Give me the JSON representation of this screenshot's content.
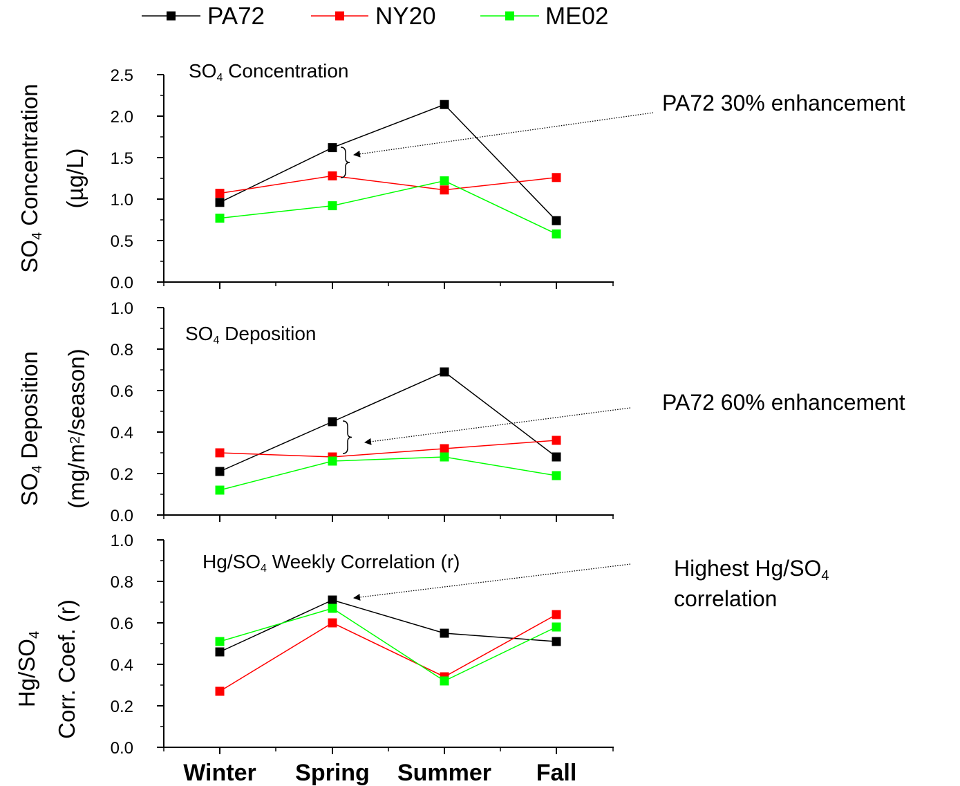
{
  "legend": [
    {
      "name": "PA72",
      "color": "#000000"
    },
    {
      "name": "NY20",
      "color": "#ff0000"
    },
    {
      "name": "ME02",
      "color": "#00ff00"
    }
  ],
  "chart_data": [
    {
      "type": "line",
      "title_main": "SO",
      "title_sub": "4",
      "title_rest": " Concentration",
      "ylabel_line1_main": "SO",
      "ylabel_line1_sub": "4",
      "ylabel_line1_rest": " Concentration",
      "ylabel_line2": "(µg/L)",
      "categories": [
        "Winter",
        "Spring",
        "Summer",
        "Fall"
      ],
      "ylim": [
        0,
        2.5
      ],
      "yticks": [
        "0.0",
        "0.5",
        "1.0",
        "1.5",
        "2.0",
        "2.5"
      ],
      "series": [
        {
          "name": "PA72",
          "color": "#000000",
          "values": [
            0.96,
            1.62,
            2.14,
            0.74
          ]
        },
        {
          "name": "NY20",
          "color": "#ff0000",
          "values": [
            1.07,
            1.28,
            1.11,
            1.26
          ]
        },
        {
          "name": "ME02",
          "color": "#00ff00",
          "values": [
            0.77,
            0.92,
            1.22,
            0.58
          ]
        }
      ]
    },
    {
      "type": "line",
      "title_main": "SO",
      "title_sub": "4",
      "title_rest": "  Deposition",
      "ylabel_line1_main": "SO",
      "ylabel_line1_sub": "4",
      "ylabel_line1_rest": " Deposition",
      "ylabel_line2_pre": "(mg/m",
      "ylabel_line2_sup": "2",
      "ylabel_line2_post": "/season)",
      "categories": [
        "Winter",
        "Spring",
        "Summer",
        "Fall"
      ],
      "ylim": [
        0,
        1.0
      ],
      "yticks": [
        "0.0",
        "0.2",
        "0.4",
        "0.6",
        "0.8",
        "1.0"
      ],
      "series": [
        {
          "name": "PA72",
          "color": "#000000",
          "values": [
            0.21,
            0.45,
            0.69,
            0.28
          ]
        },
        {
          "name": "NY20",
          "color": "#ff0000",
          "values": [
            0.3,
            0.28,
            0.32,
            0.36
          ]
        },
        {
          "name": "ME02",
          "color": "#00ff00",
          "values": [
            0.12,
            0.26,
            0.28,
            0.19
          ]
        }
      ]
    },
    {
      "type": "line",
      "title_main": "Hg/SO",
      "title_sub": "4",
      "title_rest": " Weekly Correlation (r)",
      "ylabel_line1_main": "Hg/SO",
      "ylabel_line1_sub": "4",
      "ylabel_line2": "Corr. Coef. (r)",
      "categories": [
        "Winter",
        "Spring",
        "Summer",
        "Fall"
      ],
      "ylim": [
        0,
        1.0
      ],
      "yticks": [
        "0.0",
        "0.2",
        "0.4",
        "0.6",
        "0.8",
        "1.0"
      ],
      "series": [
        {
          "name": "PA72",
          "color": "#000000",
          "values": [
            0.46,
            0.71,
            0.55,
            0.51
          ]
        },
        {
          "name": "NY20",
          "color": "#ff0000",
          "values": [
            0.27,
            0.6,
            0.34,
            0.64
          ]
        },
        {
          "name": "ME02",
          "color": "#00ff00",
          "values": [
            0.51,
            0.67,
            0.32,
            0.58
          ]
        }
      ]
    }
  ],
  "annotations": [
    {
      "text": "PA72 30% enhancement"
    },
    {
      "text": "PA72 60% enhancement"
    },
    {
      "line1_main": "Highest Hg/SO",
      "line1_sub": "4",
      "line2": "correlation"
    }
  ]
}
